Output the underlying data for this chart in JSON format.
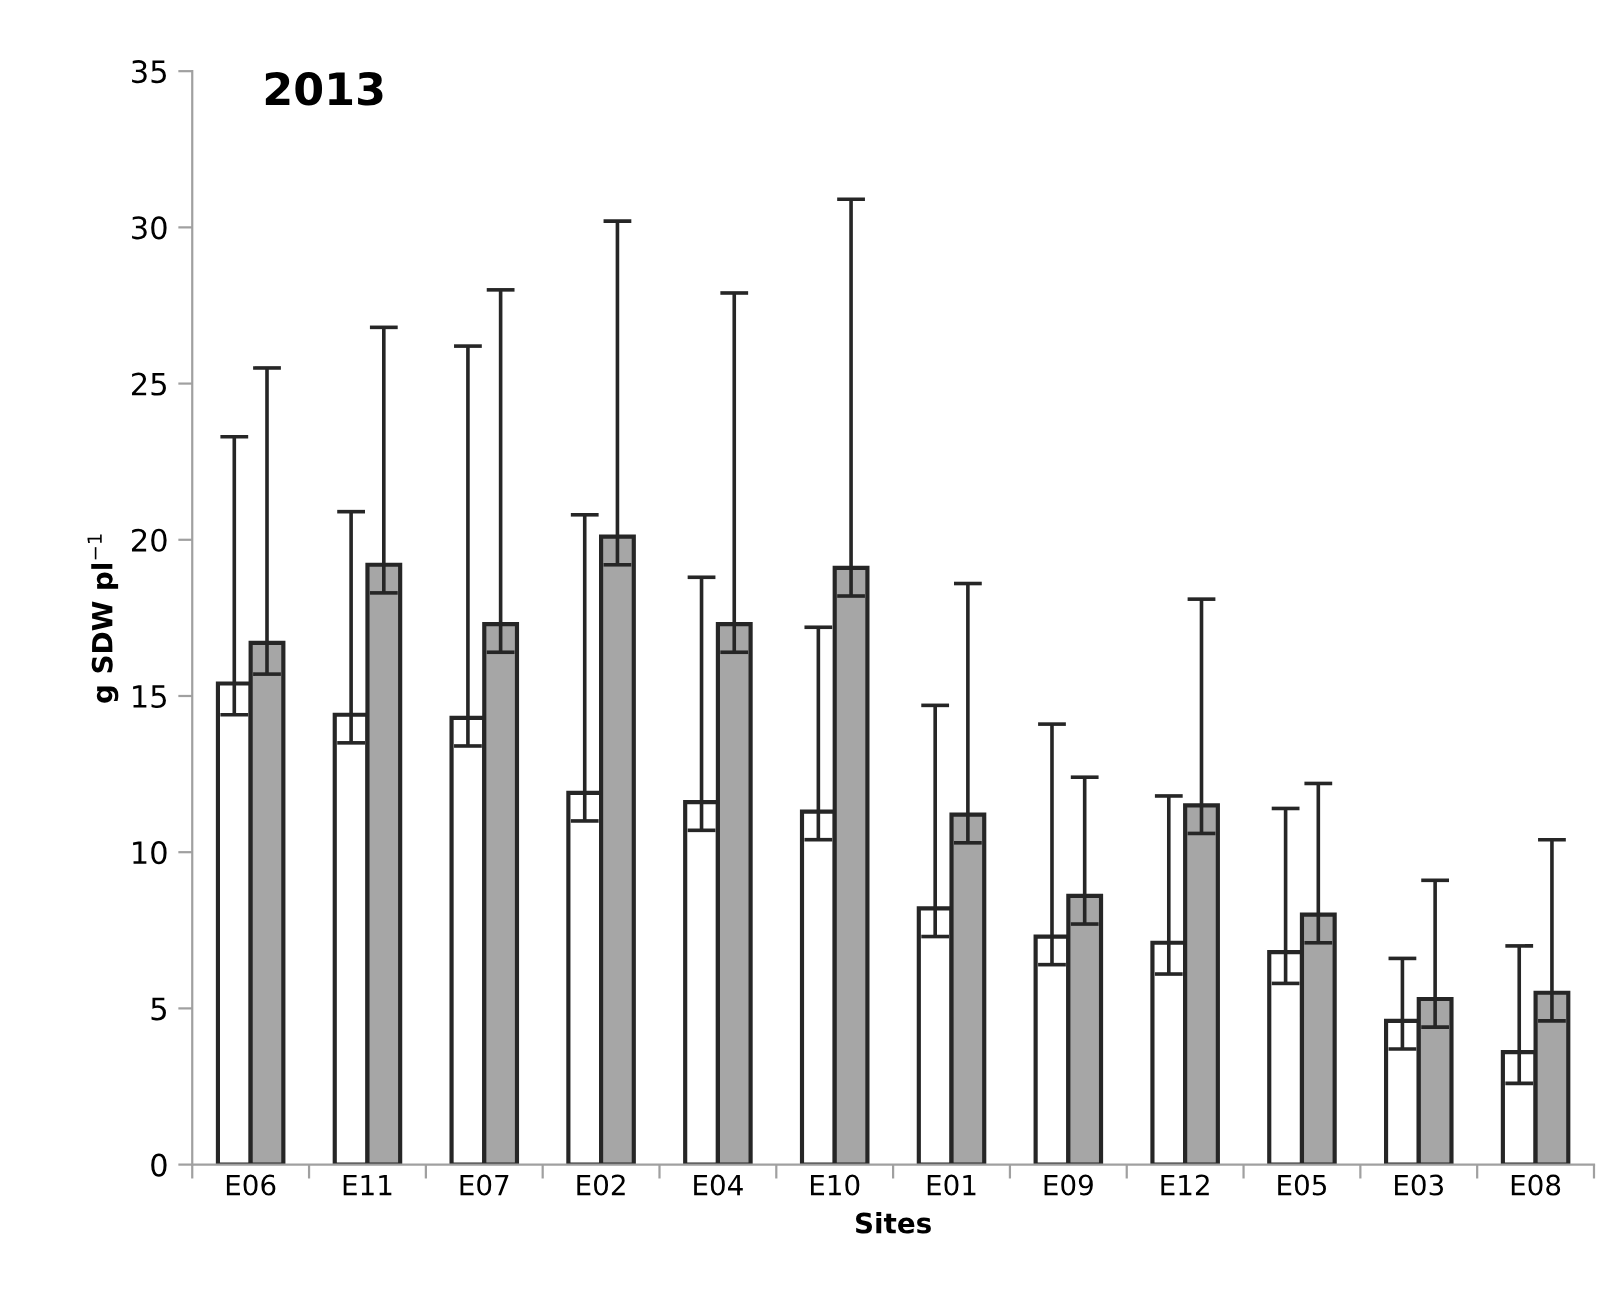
{
  "chart_data": {
    "type": "bar",
    "title": "2013",
    "xlabel": "Sites",
    "ylabel": "g SDW pl$^{−1}$",
    "categories": [
      "E06",
      "E11",
      "E07",
      "E02",
      "E04",
      "E10",
      "E01",
      "E09",
      "E12",
      "E05",
      "E03",
      "E08"
    ],
    "series": [
      {
        "color": "#ffffff",
        "values": [
          15.4,
          14.4,
          14.3,
          11.9,
          11.6,
          11.3,
          8.2,
          7.3,
          7.1,
          6.8,
          4.6,
          3.6
        ],
        "errors": [
          [
            14.4,
            23.3
          ],
          [
            13.5,
            20.9
          ],
          [
            13.4,
            26.2
          ],
          [
            11.0,
            20.8
          ],
          [
            10.7,
            18.8
          ],
          [
            10.4,
            17.2
          ],
          [
            7.3,
            14.7
          ],
          [
            6.4,
            14.1
          ],
          [
            6.1,
            11.8
          ],
          [
            5.8,
            11.4
          ],
          [
            3.7,
            6.6
          ],
          [
            2.6,
            7.0
          ]
        ]
      },
      {
        "color": "#a6a6a6",
        "values": [
          16.7,
          19.2,
          17.3,
          20.1,
          17.3,
          19.1,
          11.2,
          8.6,
          11.5,
          8.0,
          5.3,
          5.5
        ],
        "errors": [
          [
            15.7,
            25.5
          ],
          [
            18.3,
            26.8
          ],
          [
            16.4,
            28.0
          ],
          [
            19.2,
            30.2
          ],
          [
            16.4,
            27.9
          ],
          [
            18.2,
            30.9
          ],
          [
            10.3,
            18.6
          ],
          [
            7.7,
            12.4
          ],
          [
            10.6,
            18.1
          ],
          [
            7.1,
            12.2
          ],
          [
            4.4,
            9.1
          ],
          [
            4.6,
            10.4
          ]
        ]
      }
    ],
    "ylim": [
      0,
      35
    ],
    "yticks": [
      0,
      5,
      10,
      15,
      20,
      25,
      30,
      35
    ],
    "grid": false,
    "legend": false
  }
}
